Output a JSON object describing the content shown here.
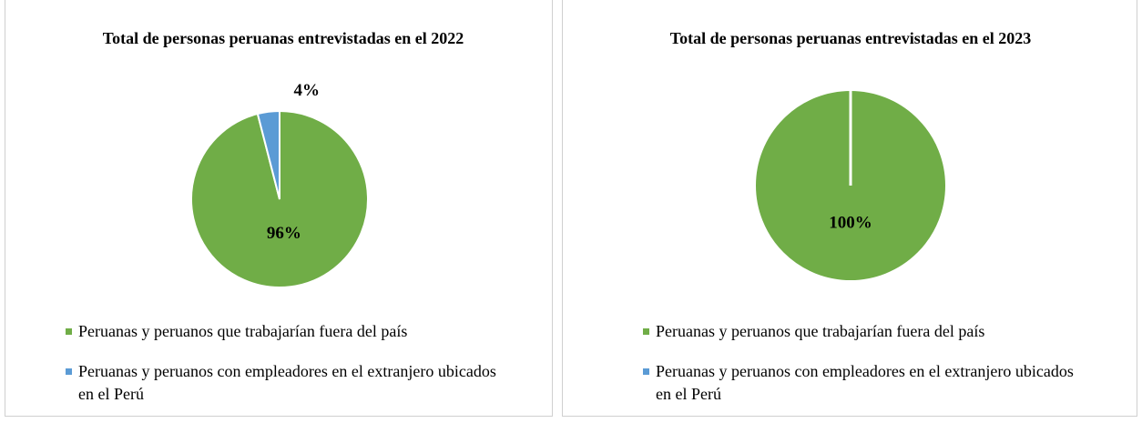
{
  "chart_data": [
    {
      "type": "pie",
      "title": "Total de personas peruanas entrevistadas en el 2022",
      "categories": [
        "Peruanas y peruanos que trabajarían fuera del país",
        "Peruanas y peruanos con empleadores en el extranjero ubicados en el Perú"
      ],
      "values": [
        96,
        4
      ],
      "value_labels": [
        "96%",
        "4%"
      ],
      "colors": [
        "#70ad47",
        "#5b9bd5"
      ],
      "legend": "bottom"
    },
    {
      "type": "pie",
      "title": "Total de personas peruanas entrevistadas en el 2023",
      "categories": [
        "Peruanas y peruanos que trabajarían fuera del país",
        "Peruanas y peruanos con empleadores en el extranjero ubicados en el Perú"
      ],
      "values": [
        100,
        0
      ],
      "value_labels": [
        "100%",
        null
      ],
      "colors": [
        "#70ad47",
        "#5b9bd5"
      ],
      "legend": "bottom"
    }
  ]
}
